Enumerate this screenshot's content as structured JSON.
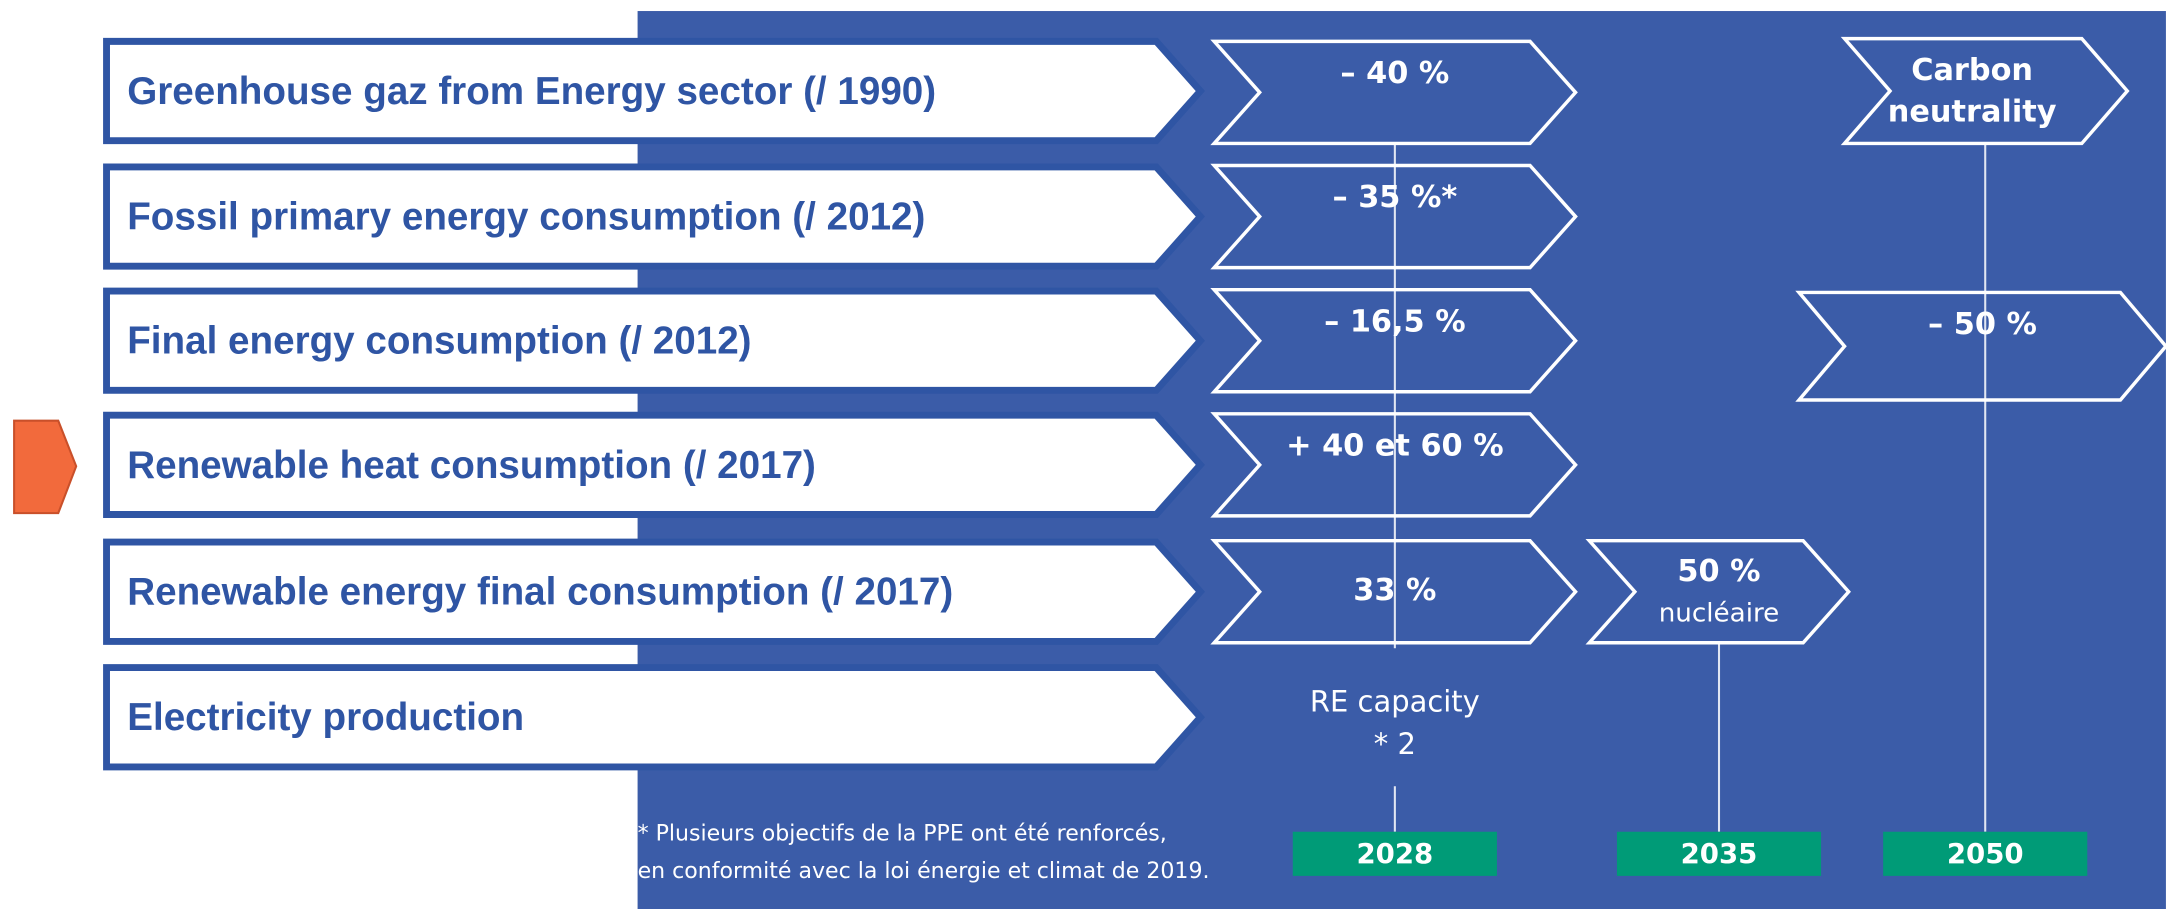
{
  "rows": [
    {
      "label": "Greenhouse gaz from Energy sector (/ 1990)"
    },
    {
      "label": "Fossil primary energy consumption (/ 2012)"
    },
    {
      "label": "Final energy consumption (/ 2012)"
    },
    {
      "label": "Renewable heat consumption (/ 2017)"
    },
    {
      "label": "Renewable energy final consumption (/ 2017)"
    },
    {
      "label": "Electricity production"
    }
  ],
  "targets": [
    {
      "lines": [
        "– 40 %"
      ]
    },
    {
      "lines": [
        "– 35 %*"
      ]
    },
    {
      "lines": [
        "– 16,5 %"
      ]
    },
    {
      "lines": [
        "+ 40 et 60 %"
      ]
    },
    {
      "lines": [
        "33 %"
      ]
    },
    {
      "lines": [
        "50 %",
        "nucléaire"
      ]
    },
    {
      "lines": [
        "Carbon",
        "neutrality"
      ]
    },
    {
      "lines": [
        "– 50 %"
      ]
    }
  ],
  "electricity_note": [
    "RE capacity",
    "* 2"
  ],
  "years": [
    "2028",
    "2035",
    "2050"
  ],
  "footnote": [
    "* Plusieurs objectifs de la PPE ont été renforcés,",
    "en conformité avec la loi énergie et climat de 2019."
  ]
}
